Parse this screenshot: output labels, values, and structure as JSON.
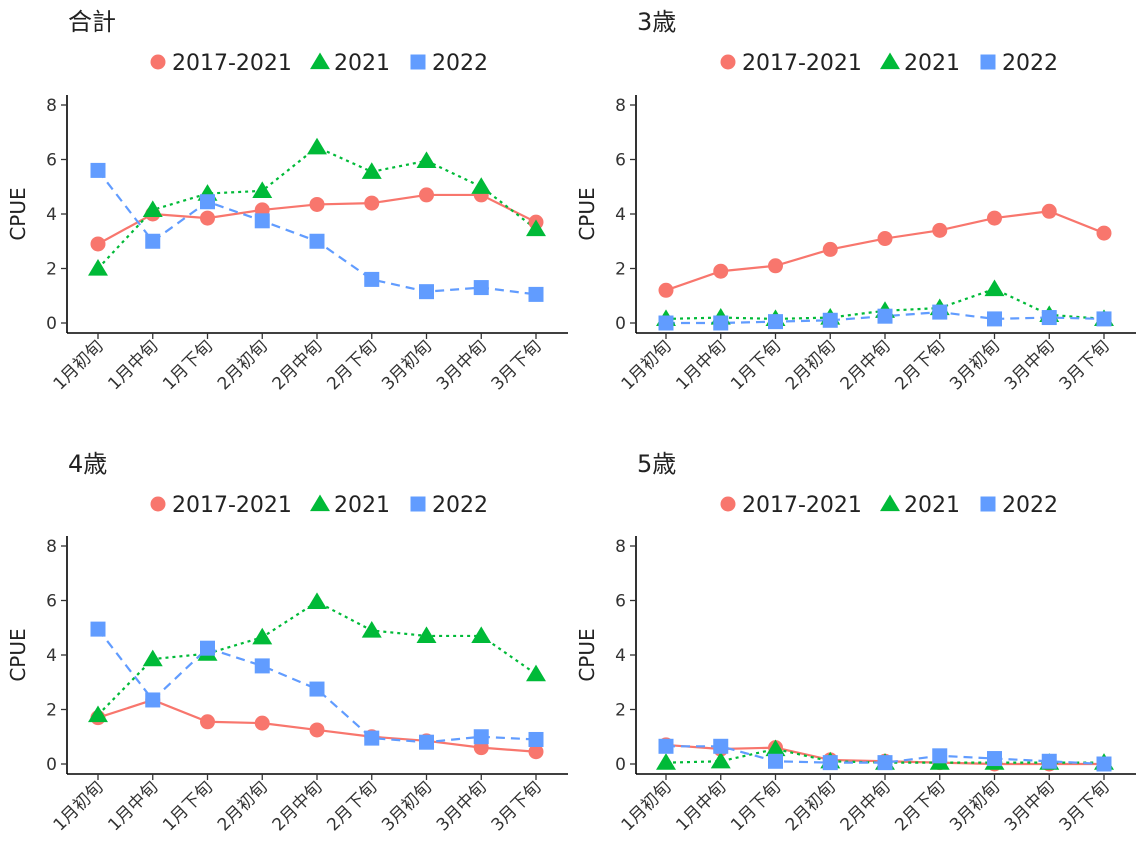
{
  "chart_data": [
    {
      "type": "line",
      "title": "合計",
      "ylabel": "CPUE",
      "xlabel": "",
      "ylim": [
        0,
        8
      ],
      "yticks": [
        0,
        2,
        4,
        6,
        8
      ],
      "legend_position": "top",
      "categories": [
        "1月初旬",
        "1月中旬",
        "1月下旬",
        "2月初旬",
        "2月中旬",
        "2月下旬",
        "3月初旬",
        "3月中旬",
        "3月下旬"
      ],
      "series": [
        {
          "name": "2017-2021",
          "marker": "circle",
          "line": "solid",
          "color": "#F8766D",
          "values": [
            2.9,
            4.0,
            3.85,
            4.15,
            4.35,
            4.4,
            4.7,
            4.7,
            3.7
          ]
        },
        {
          "name": "2021",
          "marker": "triangle",
          "line": "dotted",
          "color": "#00BA38",
          "values": [
            2.0,
            4.15,
            4.75,
            4.85,
            6.45,
            5.55,
            5.95,
            5.0,
            3.45
          ]
        },
        {
          "name": "2022",
          "marker": "square",
          "line": "dashed",
          "color": "#619CFF",
          "values": [
            5.6,
            3.0,
            4.45,
            3.75,
            3.0,
            1.6,
            1.15,
            1.3,
            1.05
          ]
        }
      ]
    },
    {
      "type": "line",
      "title": "3歳",
      "ylabel": "CPUE",
      "xlabel": "",
      "ylim": [
        0,
        8
      ],
      "yticks": [
        0,
        2,
        4,
        6,
        8
      ],
      "legend_position": "top",
      "categories": [
        "1月初旬",
        "1月中旬",
        "1月下旬",
        "2月初旬",
        "2月中旬",
        "2月下旬",
        "3月初旬",
        "3月中旬",
        "3月下旬"
      ],
      "series": [
        {
          "name": "2017-2021",
          "marker": "circle",
          "line": "solid",
          "color": "#F8766D",
          "values": [
            1.2,
            1.9,
            2.1,
            2.7,
            3.1,
            3.4,
            3.85,
            4.1,
            3.3
          ]
        },
        {
          "name": "2021",
          "marker": "triangle",
          "line": "dotted",
          "color": "#00BA38",
          "values": [
            0.15,
            0.2,
            0.15,
            0.2,
            0.45,
            0.55,
            1.25,
            0.3,
            0.15
          ]
        },
        {
          "name": "2022",
          "marker": "square",
          "line": "dashed",
          "color": "#619CFF",
          "values": [
            0.0,
            0.0,
            0.05,
            0.1,
            0.25,
            0.4,
            0.15,
            0.2,
            0.15
          ]
        }
      ]
    },
    {
      "type": "line",
      "title": "4歳",
      "ylabel": "CPUE",
      "xlabel": "",
      "ylim": [
        0,
        8
      ],
      "yticks": [
        0,
        2,
        4,
        6,
        8
      ],
      "legend_position": "top",
      "categories": [
        "1月初旬",
        "1月中旬",
        "1月下旬",
        "2月初旬",
        "2月中旬",
        "2月下旬",
        "3月初旬",
        "3月中旬",
        "3月下旬"
      ],
      "series": [
        {
          "name": "2017-2021",
          "marker": "circle",
          "line": "solid",
          "color": "#F8766D",
          "values": [
            1.7,
            2.35,
            1.55,
            1.5,
            1.25,
            1.0,
            0.85,
            0.6,
            0.45
          ]
        },
        {
          "name": "2021",
          "marker": "triangle",
          "line": "dotted",
          "color": "#00BA38",
          "values": [
            1.8,
            3.85,
            4.05,
            4.65,
            5.95,
            4.9,
            4.7,
            4.7,
            3.3
          ]
        },
        {
          "name": "2022",
          "marker": "square",
          "line": "dashed",
          "color": "#619CFF",
          "values": [
            4.95,
            2.35,
            4.25,
            3.6,
            2.75,
            0.95,
            0.8,
            1.0,
            0.9
          ]
        }
      ]
    },
    {
      "type": "line",
      "title": "5歳",
      "ylabel": "CPUE",
      "xlabel": "",
      "ylim": [
        0,
        8
      ],
      "yticks": [
        0,
        2,
        4,
        6,
        8
      ],
      "legend_position": "top",
      "categories": [
        "1月初旬",
        "1月中旬",
        "1月下旬",
        "2月初旬",
        "2月中旬",
        "2月下旬",
        "3月初旬",
        "3月中旬",
        "3月下旬"
      ],
      "series": [
        {
          "name": "2017-2021",
          "marker": "circle",
          "line": "solid",
          "color": "#F8766D",
          "values": [
            0.7,
            0.55,
            0.6,
            0.15,
            0.1,
            0.05,
            0.0,
            0.0,
            0.0
          ]
        },
        {
          "name": "2021",
          "marker": "triangle",
          "line": "dotted",
          "color": "#00BA38",
          "values": [
            0.05,
            0.1,
            0.55,
            0.1,
            0.05,
            0.05,
            0.05,
            0.05,
            0.05
          ]
        },
        {
          "name": "2022",
          "marker": "square",
          "line": "dashed",
          "color": "#619CFF",
          "values": [
            0.65,
            0.65,
            0.1,
            0.05,
            0.05,
            0.3,
            0.2,
            0.1,
            0.0
          ]
        }
      ]
    }
  ]
}
